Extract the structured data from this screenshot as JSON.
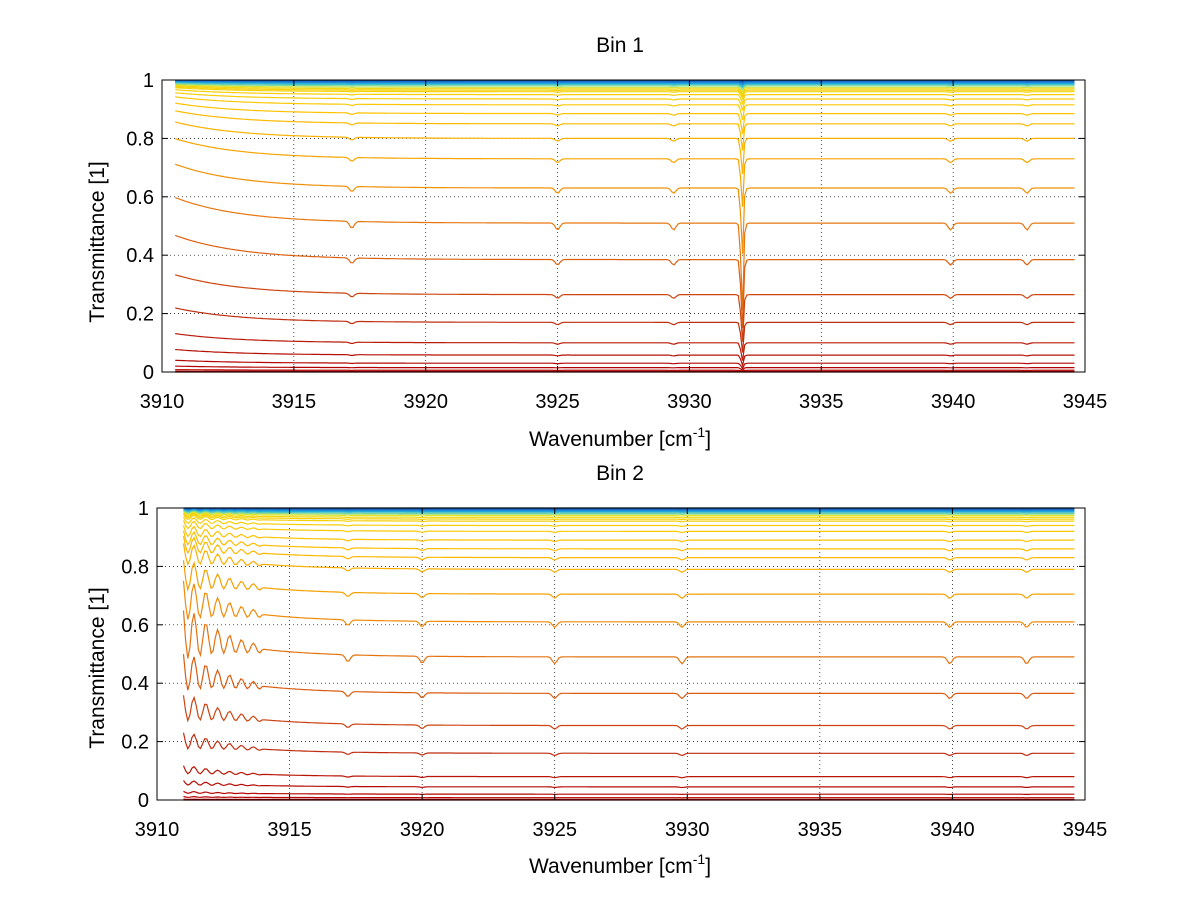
{
  "colors": {
    "background": "#ffffff",
    "axis": "#000000",
    "grid": "#000000",
    "colormap": [
      "#08306b",
      "#1f6fd0",
      "#20b2e0",
      "#7fd8a0",
      "#e8e818",
      "#ffc000",
      "#f5a000",
      "#e87a10",
      "#d85a10",
      "#c03010",
      "#b00000"
    ]
  },
  "chart_data": [
    {
      "type": "line",
      "title": "Bin 1",
      "xlabel": "Wavenumber [cm",
      "xlabel_superscript": "-1",
      "xlabel_suffix": "]",
      "ylabel": "Transmittance [1]",
      "xlim": [
        3910,
        3945
      ],
      "ylim": [
        0,
        1.0
      ],
      "xticks": [
        3910,
        3915,
        3920,
        3925,
        3930,
        3935,
        3940,
        3945
      ],
      "xtick_labels": [
        "3910",
        "3915",
        "3920",
        "3925",
        "3930",
        "3935",
        "3940",
        "3945"
      ],
      "yticks": [
        0,
        0.2,
        0.4,
        0.6,
        0.8,
        1
      ],
      "ytick_labels": [
        "0",
        "0.2",
        "0.4",
        "0.6",
        "0.8",
        "1"
      ],
      "grid": true,
      "x_start": 3910.5,
      "x_end": 3944.6,
      "absorption_lines": [
        3917.2,
        3925.0,
        3929.4,
        3932.0,
        3939.9,
        3942.8
      ],
      "strong_line": 3932.0,
      "low_edge_ripple": false,
      "series_levels": [
        0.999,
        0.997,
        0.995,
        0.993,
        0.99,
        0.987,
        0.984,
        0.98,
        0.975,
        0.97,
        0.965,
        0.96,
        0.95,
        0.935,
        0.915,
        0.885,
        0.85,
        0.8,
        0.73,
        0.63,
        0.51,
        0.385,
        0.265,
        0.17,
        0.1,
        0.058,
        0.03,
        0.015,
        0.006,
        0.002,
        0.0
      ]
    },
    {
      "type": "line",
      "title": "Bin 2",
      "xlabel": "Wavenumber [cm",
      "xlabel_superscript": "-1",
      "xlabel_suffix": "]",
      "ylabel": "Transmittance [1]",
      "xlim": [
        3910,
        3945
      ],
      "ylim": [
        0,
        1.0
      ],
      "xticks": [
        3910,
        3915,
        3920,
        3925,
        3930,
        3935,
        3940,
        3945
      ],
      "xtick_labels": [
        "3910",
        "3915",
        "3920",
        "3925",
        "3930",
        "3935",
        "3940",
        "3945"
      ],
      "yticks": [
        0,
        0.2,
        0.4,
        0.6,
        0.8,
        1
      ],
      "ytick_labels": [
        "0",
        "0.2",
        "0.4",
        "0.6",
        "0.8",
        "1"
      ],
      "grid": true,
      "x_start": 3911.0,
      "x_end": 3944.6,
      "absorption_lines": [
        3917.2,
        3920.0,
        3925.0,
        3929.8,
        3939.9,
        3942.8
      ],
      "strong_line": null,
      "low_edge_ripple": true,
      "series_levels": [
        1.0,
        0.998,
        0.996,
        0.993,
        0.99,
        0.987,
        0.983,
        0.979,
        0.974,
        0.968,
        0.962,
        0.955,
        0.94,
        0.92,
        0.89,
        0.86,
        0.83,
        0.79,
        0.705,
        0.61,
        0.49,
        0.365,
        0.255,
        0.16,
        0.08,
        0.045,
        0.02,
        0.008,
        0.002,
        0.0
      ]
    }
  ]
}
